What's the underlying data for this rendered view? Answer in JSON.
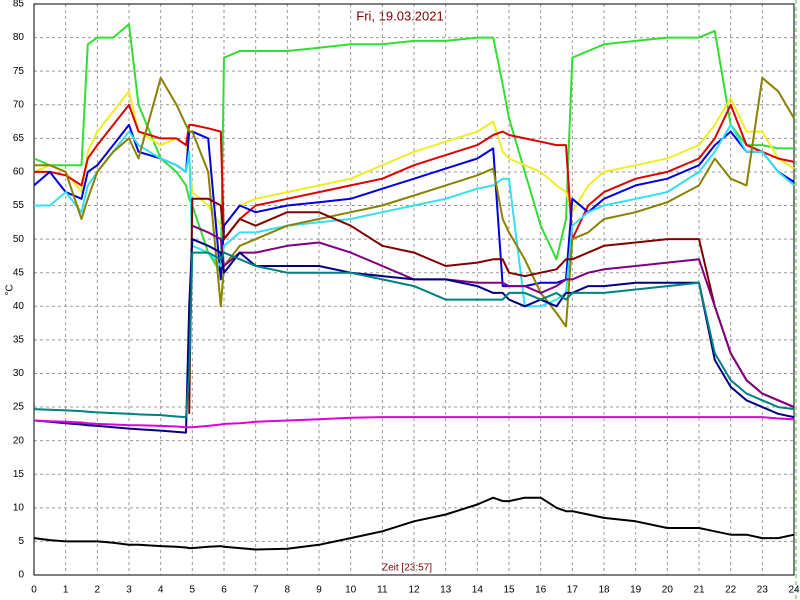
{
  "chart_data": {
    "type": "line",
    "title": "Fri, 19.03.2021",
    "x_label": "Zeit [23:57]",
    "y_label": "°C",
    "x": [
      0,
      0.5,
      1,
      1.5,
      1.7,
      2,
      2.5,
      3,
      3.3,
      4,
      4.5,
      4.8,
      4.9,
      5,
      5.5,
      5.9,
      6,
      6.5,
      7,
      8,
      9,
      10,
      11,
      12,
      13,
      14,
      14.5,
      14.8,
      15,
      15.5,
      16,
      16.5,
      16.8,
      17,
      17.5,
      18,
      19,
      20,
      21,
      21.5,
      22,
      22.5,
      23,
      23.5,
      24
    ],
    "xlim": [
      0,
      24
    ],
    "xticks": [
      0,
      1,
      2,
      3,
      4,
      5,
      6,
      7,
      8,
      9,
      10,
      11,
      12,
      13,
      14,
      15,
      16,
      17,
      18,
      19,
      20,
      21,
      22,
      23,
      24
    ],
    "ylim": [
      0,
      85
    ],
    "yticks": [
      0,
      5,
      10,
      15,
      20,
      25,
      30,
      35,
      40,
      45,
      50,
      55,
      60,
      65,
      70,
      75,
      80,
      85
    ],
    "grid": true,
    "series": [
      {
        "color": "#33dd33",
        "values": [
          62,
          61,
          61,
          61,
          79,
          80,
          80,
          82,
          70,
          62,
          60,
          58,
          56,
          55,
          48,
          45,
          77,
          78,
          78,
          78,
          78.5,
          79,
          79,
          79.5,
          79.5,
          80,
          80,
          73,
          68,
          60,
          52,
          47,
          53,
          77,
          78,
          79,
          79.5,
          80,
          80,
          81,
          67,
          64,
          64,
          63.5,
          63.5
        ]
      },
      {
        "color": "#eeee22",
        "values": [
          60,
          61,
          60,
          57,
          63,
          66,
          69,
          72,
          66,
          64,
          65,
          64,
          62,
          57,
          55,
          52,
          52,
          55,
          56,
          57,
          58,
          59,
          61,
          63,
          64.5,
          66,
          67.5,
          63,
          62,
          61,
          60,
          58,
          57,
          54,
          58,
          60,
          61,
          62,
          64,
          67,
          71,
          66,
          66,
          62,
          60.5
        ]
      },
      {
        "color": "#dd0000",
        "values": [
          60,
          60,
          59.5,
          58,
          62,
          64,
          67,
          70,
          66,
          65,
          65,
          64,
          67,
          67,
          66.5,
          66,
          50,
          53,
          55,
          56,
          57,
          58,
          59,
          61,
          62.5,
          64,
          65.5,
          66,
          65.5,
          65,
          64.5,
          64,
          64,
          50,
          55,
          57,
          59,
          60,
          62,
          65,
          70,
          64,
          63,
          62,
          61.5
        ]
      },
      {
        "color": "#0000dd",
        "values": [
          58,
          60,
          57,
          56,
          60,
          61,
          64,
          67,
          63,
          62,
          61,
          60,
          66,
          66,
          65,
          44,
          52,
          55,
          54,
          55,
          55.5,
          56,
          57.5,
          59,
          60.5,
          62,
          63.5,
          43,
          43,
          43,
          43.5,
          43.5,
          44,
          56,
          54,
          56,
          58,
          59,
          61,
          64,
          66,
          63,
          63,
          60,
          58.5
        ]
      },
      {
        "color": "#33e0f0",
        "values": [
          55,
          55,
          57,
          54,
          58,
          60,
          63,
          66,
          64,
          62,
          61,
          60,
          63,
          49,
          48,
          46,
          49,
          51,
          51,
          52,
          52.5,
          53,
          54,
          55,
          56,
          57.5,
          58,
          59,
          59,
          40,
          40,
          41,
          42,
          52,
          54,
          55,
          56,
          57,
          60,
          63,
          67,
          63,
          63,
          60,
          58
        ]
      },
      {
        "color": "#8b8000",
        "values": [
          61,
          61,
          60,
          53,
          56,
          60,
          63,
          65,
          62,
          74,
          70,
          67,
          66,
          66,
          60,
          40,
          46,
          49,
          50,
          52,
          53,
          54,
          55,
          56.5,
          58,
          59.5,
          60.5,
          53,
          51,
          47,
          42,
          39,
          37,
          50,
          51,
          53,
          54,
          55.5,
          58,
          62,
          59,
          58,
          74,
          72,
          68
        ]
      },
      {
        "color": "#800000",
        "values": [
          null,
          null,
          null,
          null,
          null,
          null,
          null,
          null,
          null,
          null,
          null,
          null,
          24,
          56,
          56,
          55,
          50,
          53,
          52,
          54,
          54,
          52,
          49,
          48,
          46,
          46.5,
          47,
          47,
          45,
          44.5,
          45,
          45.5,
          47,
          47,
          48,
          49,
          49.5,
          50,
          50,
          40,
          33,
          29,
          27,
          26,
          25
        ]
      },
      {
        "color": "#800080",
        "values": [
          null,
          null,
          null,
          null,
          null,
          null,
          null,
          null,
          null,
          null,
          null,
          null,
          null,
          52,
          51,
          50,
          46,
          48,
          48,
          49,
          49.5,
          48,
          46,
          44,
          44,
          43.5,
          43.5,
          43.5,
          43,
          43,
          42,
          43,
          44,
          44,
          45,
          45.5,
          46,
          46.5,
          47,
          40,
          33,
          29,
          27,
          26,
          25
        ]
      },
      {
        "color": "#000080",
        "values": [
          23,
          22.8,
          22.6,
          22.4,
          22.3,
          22.2,
          22,
          21.8,
          21.7,
          21.5,
          21.3,
          21.2,
          40,
          50,
          49,
          48,
          45,
          48,
          46,
          46,
          46,
          45,
          44.5,
          44,
          44,
          43,
          42,
          42,
          41,
          40,
          41,
          40,
          42,
          42,
          43,
          43,
          43.5,
          43.5,
          43.5,
          32,
          28,
          26,
          25,
          24,
          23.5
        ]
      },
      {
        "color": "#008080",
        "values": [
          24.7,
          24.6,
          24.5,
          24.4,
          24.3,
          24.2,
          24.1,
          24,
          23.9,
          23.8,
          23.6,
          23.5,
          30,
          48,
          48,
          47,
          48,
          47,
          46,
          45,
          45,
          45,
          44,
          43,
          41,
          41,
          41,
          41,
          42,
          42,
          41,
          42,
          41,
          42,
          42,
          42,
          42.5,
          43,
          43.5,
          33,
          29,
          27,
          26,
          25,
          24.7
        ]
      },
      {
        "color": "#dd00dd",
        "values": [
          23,
          22.9,
          22.8,
          22.7,
          22.6,
          22.5,
          22.4,
          22.3,
          22.3,
          22.2,
          22.1,
          22,
          22,
          22,
          22.2,
          22.4,
          22.5,
          22.6,
          22.8,
          23,
          23.2,
          23.4,
          23.5,
          23.5,
          23.5,
          23.5,
          23.5,
          23.5,
          23.5,
          23.5,
          23.5,
          23.5,
          23.5,
          23.5,
          23.5,
          23.5,
          23.5,
          23.5,
          23.5,
          23.5,
          23.5,
          23.5,
          23.5,
          23.3,
          23.2
        ]
      },
      {
        "color": "#000000",
        "values": [
          5.5,
          5.2,
          5,
          5,
          5,
          5,
          4.8,
          4.5,
          4.5,
          4.3,
          4.2,
          4.1,
          4,
          4,
          4.2,
          4.3,
          4.2,
          4,
          3.8,
          3.9,
          4.5,
          5.5,
          6.5,
          8,
          9,
          10.5,
          11.5,
          11,
          11,
          11.5,
          11.5,
          10,
          9.5,
          9.5,
          9,
          8.5,
          8,
          7,
          7,
          6.5,
          6,
          6,
          5.5,
          5.5,
          6
        ]
      }
    ]
  }
}
